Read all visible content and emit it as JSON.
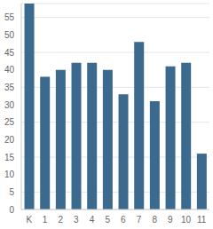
{
  "chart_data": {
    "type": "bar",
    "categories": [
      "K",
      "1",
      "2",
      "3",
      "4",
      "5",
      "6",
      "7",
      "8",
      "9",
      "10",
      "11"
    ],
    "values": [
      59,
      38,
      40,
      42,
      42,
      40,
      33,
      48,
      31,
      41,
      42,
      16
    ],
    "color": "#3b6a8e",
    "ylim": [
      0,
      59
    ],
    "yticks": [
      0,
      5,
      10,
      15,
      20,
      25,
      30,
      35,
      40,
      45,
      50,
      55
    ],
    "grid": true
  }
}
